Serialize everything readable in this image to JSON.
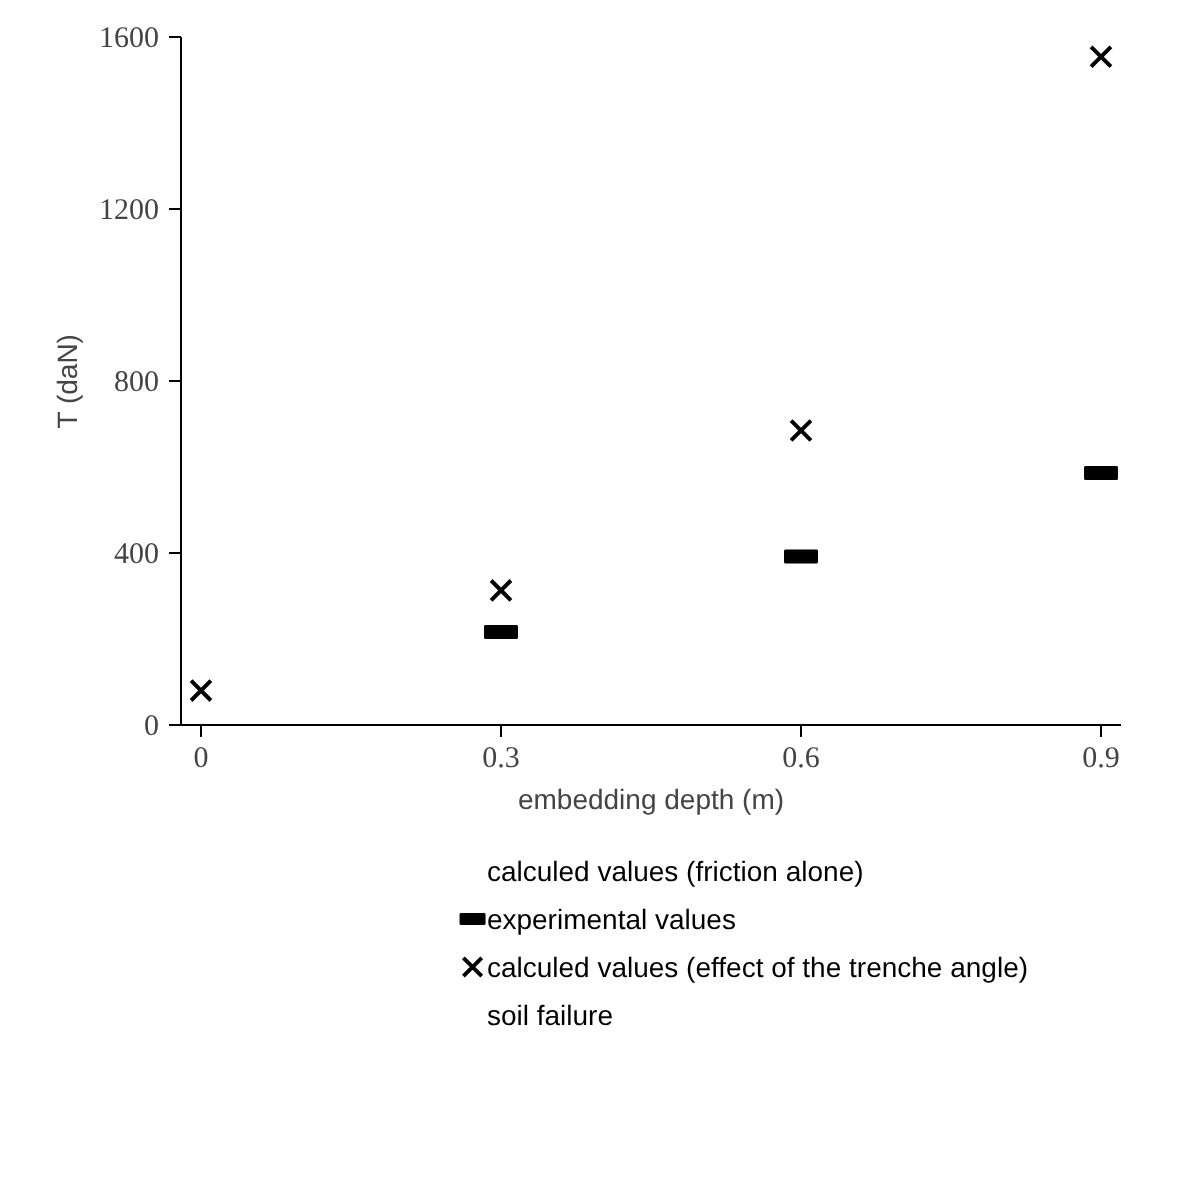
{
  "chart_data": {
    "type": "scatter",
    "xlabel": "embedding depth (m)",
    "ylabel": "T (daN)",
    "xlim": [
      -0.02,
      0.92
    ],
    "xticks": [
      0,
      0.3,
      0.6,
      0.9
    ],
    "ylim": [
      0,
      1600
    ],
    "yticks": [
      0,
      400,
      800,
      1200,
      1600
    ],
    "grid": false,
    "legend": "bottom",
    "annotations": [
      "calculed values (friction alone)",
      "soil failure"
    ],
    "series": [
      {
        "name": "experimental values",
        "color": "#000000",
        "x": [
          0.3,
          0.6,
          0.9
        ],
        "values": [
          216,
          392,
          586
        ]
      },
      {
        "name": "calculed values (effect of the trenche angle)",
        "color": "#000000",
        "marker": "cross",
        "x": [
          0,
          0.3,
          0.6,
          0.9
        ],
        "values": [
          80,
          313,
          685,
          1554
        ]
      }
    ]
  }
}
